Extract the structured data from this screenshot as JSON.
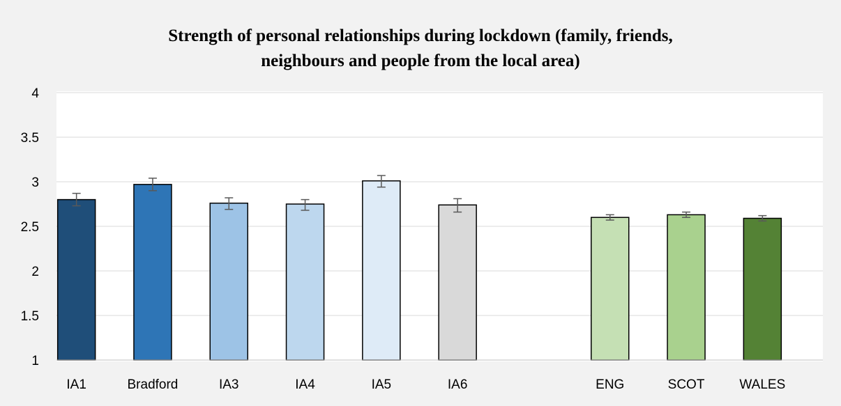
{
  "chart_data": {
    "type": "bar",
    "title_lines": [
      "Strength of personal relationships during lockdown (family, friends,",
      "neighbours and people from the local area)"
    ],
    "categories": [
      "IA1",
      "Bradford",
      "IA3",
      "IA4",
      "IA5",
      "IA6",
      "ENG",
      "SCOT",
      "WALES"
    ],
    "values": [
      2.8,
      2.97,
      2.76,
      2.75,
      3.01,
      2.74,
      2.6,
      2.63,
      2.59
    ],
    "error_bars": [
      [
        2.73,
        2.87
      ],
      [
        2.9,
        3.04
      ],
      [
        2.69,
        2.82
      ],
      [
        2.68,
        2.8
      ],
      [
        2.94,
        3.07
      ],
      [
        2.66,
        2.81
      ],
      [
        2.57,
        2.63
      ],
      [
        2.6,
        2.66
      ],
      [
        2.56,
        2.62
      ]
    ],
    "colors": [
      "#1f4e79",
      "#2e75b6",
      "#9dc3e6",
      "#bdd7ee",
      "#deebf7",
      "#d9d9d9",
      "#c5e0b4",
      "#a9d18e",
      "#548235"
    ],
    "ylim": [
      1,
      4
    ],
    "yticks": [
      "1",
      "1.5",
      "2",
      "2.5",
      "3",
      "3.5",
      "4"
    ],
    "grid": true,
    "legend": "none",
    "xlabel": "",
    "ylabel": ""
  }
}
